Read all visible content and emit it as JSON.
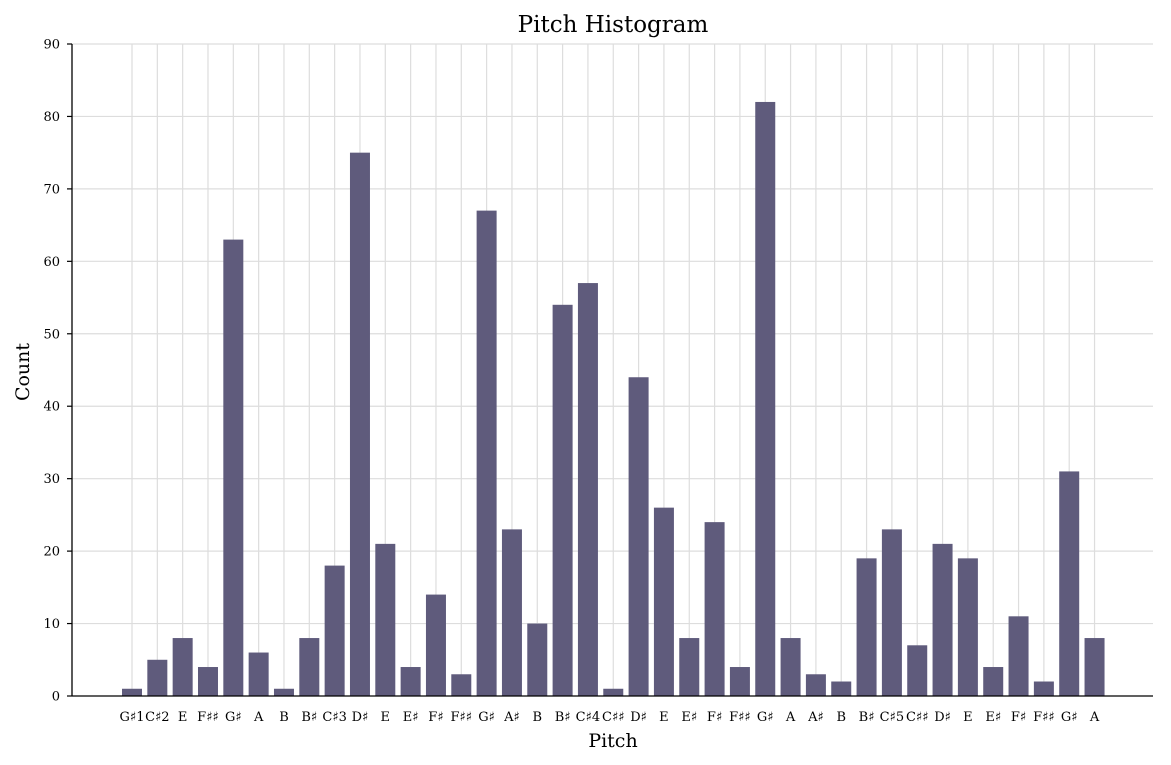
{
  "chart_data": {
    "type": "bar",
    "title": "Pitch Histogram",
    "xlabel": "Pitch",
    "ylabel": "Count",
    "ylim": [
      0,
      90
    ],
    "yticks": [
      0,
      10,
      20,
      30,
      40,
      50,
      60,
      70,
      80,
      90
    ],
    "grid": true,
    "legend": "none",
    "colors": {
      "bar": "#5f5b7c",
      "grid": "#dddddd",
      "axis": "#000000"
    },
    "categories": [
      "G♯1",
      "C♯2",
      "E",
      "F♯♯",
      "G♯",
      "A",
      "B",
      "B♯",
      "C♯3",
      "D♯",
      "E",
      "E♯",
      "F♯",
      "F♯♯",
      "G♯",
      "A♯",
      "B",
      "B♯",
      "C♯4",
      "C♯♯",
      "D♯",
      "E",
      "E♯",
      "F♯",
      "F♯♯",
      "G♯",
      "A",
      "A♯",
      "B",
      "B♯",
      "C♯5",
      "C♯♯",
      "D♯",
      "E",
      "E♯",
      "F♯",
      "F♯♯",
      "G♯",
      "A"
    ],
    "values": [
      1,
      5,
      8,
      4,
      63,
      6,
      1,
      8,
      18,
      75,
      21,
      4,
      14,
      3,
      67,
      23,
      10,
      54,
      57,
      1,
      44,
      26,
      8,
      24,
      4,
      82,
      8,
      3,
      2,
      19,
      23,
      7,
      21,
      19,
      4,
      11,
      2,
      31,
      8
    ]
  }
}
